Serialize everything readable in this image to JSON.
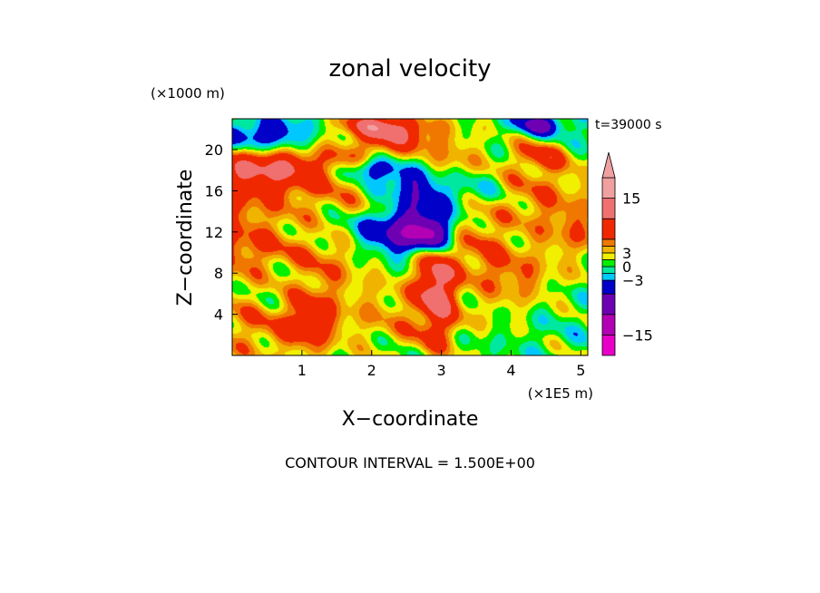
{
  "chart_data": {
    "type": "heatmap",
    "title": "zonal velocity",
    "xlabel": "X−coordinate",
    "ylabel": "Z−coordinate",
    "x_unit": "(×1E5 m)",
    "y_unit": "(×1000 m)",
    "time_label": "t=39000 s",
    "footer": "CONTOUR INTERVAL = 1.500E+00",
    "xlim": [
      0,
      5.1
    ],
    "ylim": [
      0,
      23
    ],
    "x_ticks": [
      {
        "value": 1,
        "label": "1"
      },
      {
        "value": 2,
        "label": "2"
      },
      {
        "value": 3,
        "label": "3"
      },
      {
        "value": 4,
        "label": "4"
      },
      {
        "value": 5,
        "label": "5"
      }
    ],
    "y_ticks": [
      {
        "value": 4,
        "label": "4"
      },
      {
        "value": 8,
        "label": "8"
      },
      {
        "value": 12,
        "label": "12"
      },
      {
        "value": 16,
        "label": "16"
      },
      {
        "value": 20,
        "label": "20"
      }
    ],
    "contour_interval": 1.5,
    "colorbar": {
      "vmin": -19.5,
      "vmax": 19.5,
      "bands": [
        {
          "from": -19.5,
          "to": -15.0,
          "color": "#e800c8"
        },
        {
          "from": -15.0,
          "to": -10.5,
          "color": "#b400b4"
        },
        {
          "from": -10.5,
          "to": -6.0,
          "color": "#6e00b4"
        },
        {
          "from": -6.0,
          "to": -3.0,
          "color": "#0000c8"
        },
        {
          "from": -3.0,
          "to": -1.5,
          "color": "#00c8ff"
        },
        {
          "from": -1.5,
          "to": 0.0,
          "color": "#00e8a0"
        },
        {
          "from": 0.0,
          "to": 1.5,
          "color": "#00f000"
        },
        {
          "from": 1.5,
          "to": 3.0,
          "color": "#f0f000"
        },
        {
          "from": 3.0,
          "to": 4.5,
          "color": "#f0b400"
        },
        {
          "from": 4.5,
          "to": 6.0,
          "color": "#f07800"
        },
        {
          "from": 6.0,
          "to": 10.5,
          "color": "#f02800"
        },
        {
          "from": 10.5,
          "to": 15.0,
          "color": "#f07070"
        },
        {
          "from": 15.0,
          "to": 19.5,
          "color": "#f0a0a0"
        }
      ],
      "extend_top": true,
      "ticks": [
        {
          "value": 15,
          "label": "15"
        },
        {
          "value": 3,
          "label": "3"
        },
        {
          "value": 0,
          "label": "0"
        },
        {
          "value": -3,
          "label": "−3"
        },
        {
          "value": -15,
          "label": "−15"
        }
      ]
    },
    "field_blobs": [
      {
        "x": 0.0,
        "z": 14.0,
        "sx": 0.6,
        "sz": 5.0,
        "v": 4
      },
      {
        "x": 0.2,
        "z": 18.0,
        "sx": 0.5,
        "sz": 1.8,
        "v": 5
      },
      {
        "x": 0.3,
        "z": 21.0,
        "sx": 0.5,
        "sz": 1.5,
        "v": -6
      },
      {
        "x": 0.6,
        "z": 21.5,
        "sx": 0.4,
        "sz": 1.2,
        "v": -3
      },
      {
        "x": 0.7,
        "z": 19.0,
        "sx": 0.5,
        "sz": 1.2,
        "v": 5
      },
      {
        "x": 1.0,
        "z": 17.0,
        "sx": 0.5,
        "sz": 1.5,
        "v": 4
      },
      {
        "x": 0.3,
        "z": 10.0,
        "sx": 0.5,
        "sz": 2.0,
        "v": 3
      },
      {
        "x": 0.6,
        "z": 6.5,
        "sx": 0.4,
        "sz": 2.0,
        "v": -2
      },
      {
        "x": 0.3,
        "z": 3.0,
        "sx": 0.5,
        "sz": 2.5,
        "v": 4
      },
      {
        "x": 1.1,
        "z": 3.0,
        "sx": 0.3,
        "sz": 2.0,
        "v": 5
      },
      {
        "x": 1.2,
        "z": 6.0,
        "sx": 0.3,
        "sz": 3.0,
        "v": 3
      },
      {
        "x": 1.6,
        "z": 10.0,
        "sx": 0.5,
        "sz": 2.0,
        "v": 3
      },
      {
        "x": 1.7,
        "z": 14.0,
        "sx": 0.5,
        "sz": 1.8,
        "v": 3
      },
      {
        "x": 1.9,
        "z": 19.5,
        "sx": 0.6,
        "sz": 1.2,
        "v": 4
      },
      {
        "x": 2.3,
        "z": 21.5,
        "sx": 0.5,
        "sz": 1.0,
        "v": 8
      },
      {
        "x": 2.1,
        "z": 22.5,
        "sx": 0.4,
        "sz": 0.7,
        "v": 7
      },
      {
        "x": 2.0,
        "z": 18.2,
        "sx": 0.25,
        "sz": 0.8,
        "v": -8
      },
      {
        "x": 2.5,
        "z": 17.0,
        "sx": 0.3,
        "sz": 1.2,
        "v": -5
      },
      {
        "x": 2.8,
        "z": 15.0,
        "sx": 0.25,
        "sz": 1.5,
        "v": -5
      },
      {
        "x": 2.3,
        "z": 12.0,
        "sx": 0.45,
        "sz": 1.7,
        "v": -9
      },
      {
        "x": 2.85,
        "z": 11.8,
        "sx": 0.25,
        "sz": 1.1,
        "v": -10
      },
      {
        "x": 2.9,
        "z": 8.0,
        "sx": 0.2,
        "sz": 2.5,
        "v": 6
      },
      {
        "x": 2.95,
        "z": 6.0,
        "sx": 0.2,
        "sz": 2.2,
        "v": 7
      },
      {
        "x": 2.2,
        "z": 4.0,
        "sx": 0.5,
        "sz": 2.5,
        "v": 3
      },
      {
        "x": 3.0,
        "z": 2.0,
        "sx": 0.3,
        "sz": 2.0,
        "v": 4
      },
      {
        "x": 3.35,
        "z": 1.5,
        "sx": 0.15,
        "sz": 1.0,
        "v": -2
      },
      {
        "x": 3.5,
        "z": 12.0,
        "sx": 0.35,
        "sz": 2.2,
        "v": 4
      },
      {
        "x": 3.5,
        "z": 16.0,
        "sx": 0.3,
        "sz": 1.5,
        "v": -3
      },
      {
        "x": 3.7,
        "z": 9.0,
        "sx": 0.4,
        "sz": 1.5,
        "v": 3
      },
      {
        "x": 3.9,
        "z": 5.0,
        "sx": 0.4,
        "sz": 2.0,
        "v": 2
      },
      {
        "x": 4.3,
        "z": 3.0,
        "sx": 0.5,
        "sz": 2.5,
        "v": -1
      },
      {
        "x": 4.4,
        "z": 16.0,
        "sx": 0.5,
        "sz": 2.5,
        "v": 4
      },
      {
        "x": 4.5,
        "z": 19.5,
        "sx": 0.3,
        "sz": 1.0,
        "v": 6
      },
      {
        "x": 4.4,
        "z": 22.5,
        "sx": 0.25,
        "sz": 0.7,
        "v": -8
      },
      {
        "x": 4.9,
        "z": 21.0,
        "sx": 0.35,
        "sz": 1.5,
        "v": -2
      },
      {
        "x": 4.9,
        "z": 12.0,
        "sx": 0.4,
        "sz": 2.0,
        "v": 4
      },
      {
        "x": 4.2,
        "z": 7.5,
        "sx": 0.4,
        "sz": 1.5,
        "v": 3
      },
      {
        "x": 1.3,
        "z": 20.5,
        "sx": 0.4,
        "sz": 1.0,
        "v": -2
      },
      {
        "x": 1.4,
        "z": 12.5,
        "sx": 0.3,
        "sz": 1.0,
        "v": -2
      },
      {
        "x": 3.2,
        "z": 19.0,
        "sx": 0.3,
        "sz": 1.5,
        "v": 3
      }
    ]
  }
}
